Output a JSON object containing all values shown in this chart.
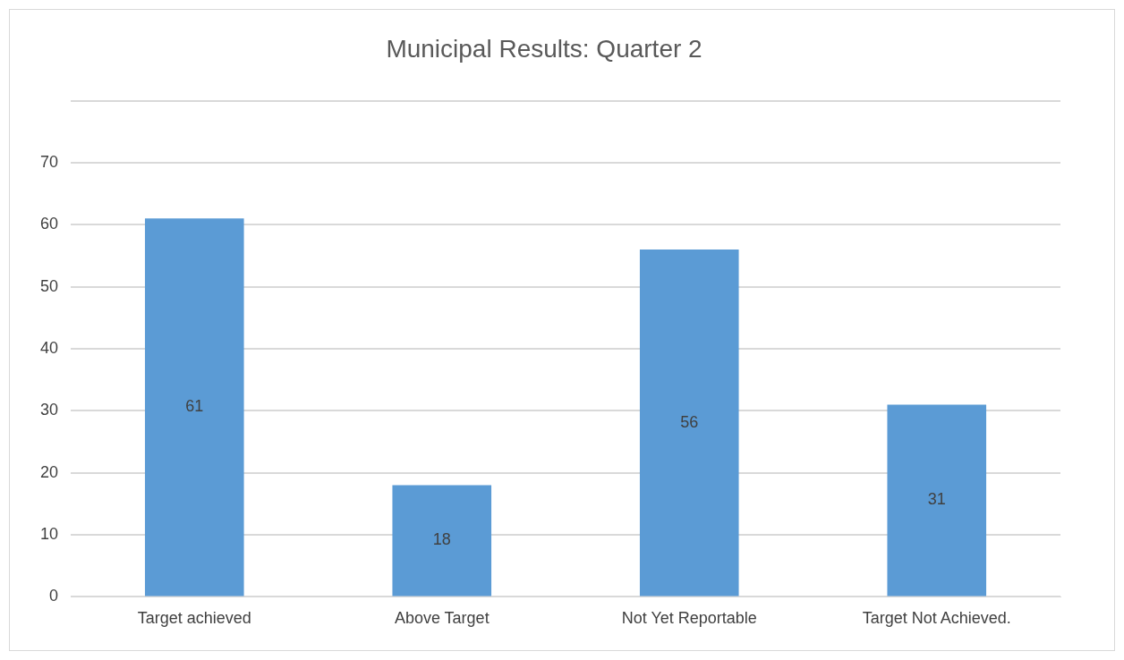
{
  "chart_data": {
    "type": "bar",
    "title": "Municipal Results: Quarter 2",
    "categories": [
      "Target achieved",
      "Above Target",
      "Not Yet Reportable",
      "Target Not Achieved."
    ],
    "values": [
      61,
      18,
      56,
      31
    ],
    "color": "#5b9bd5",
    "ylim": [
      0,
      80
    ],
    "yticks": [
      0,
      10,
      20,
      30,
      40,
      50,
      60,
      70,
      {
        "value": 80,
        "label": null
      }
    ],
    "grid": "y",
    "data_labels": true,
    "legend": false
  }
}
